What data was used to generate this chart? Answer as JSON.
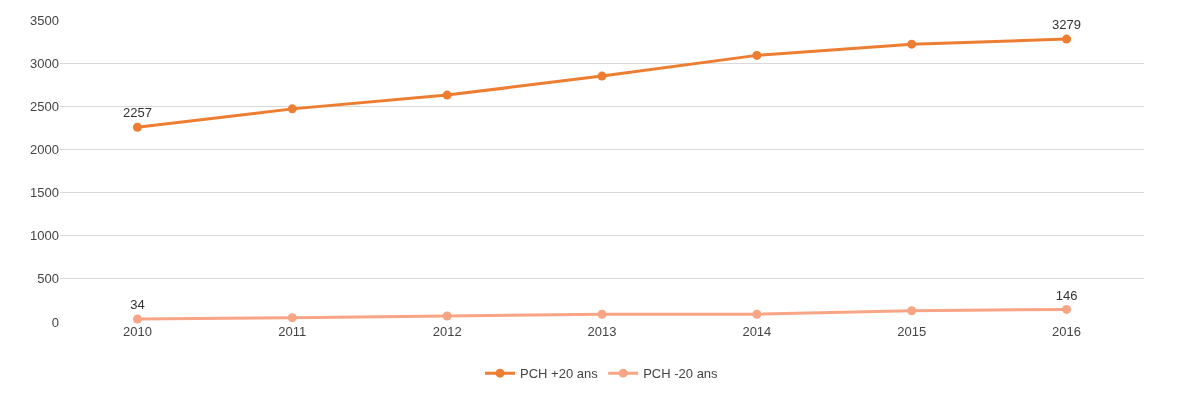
{
  "chart_data": {
    "type": "line",
    "categories": [
      "2010",
      "2011",
      "2012",
      "2013",
      "2014",
      "2015",
      "2016"
    ],
    "series": [
      {
        "name": "PCH +20 ans",
        "color": "#ed7d31",
        "values": [
          2257,
          2470,
          2630,
          2850,
          3090,
          3220,
          3279
        ],
        "value_labels": [
          "2257",
          null,
          null,
          null,
          null,
          null,
          "3279"
        ]
      },
      {
        "name": "PCH -20 ans",
        "color": "#f7a584",
        "values": [
          34,
          50,
          70,
          90,
          90,
          130,
          146
        ],
        "value_labels": [
          "34",
          null,
          null,
          null,
          null,
          null,
          "146"
        ]
      }
    ],
    "ylim": [
      0,
      3500
    ],
    "yticks": [
      0,
      500,
      1000,
      1500,
      2000,
      2500,
      3000,
      3500
    ],
    "grid": "y",
    "legend": "bottom",
    "marker": "circle",
    "line_style": "solid"
  }
}
